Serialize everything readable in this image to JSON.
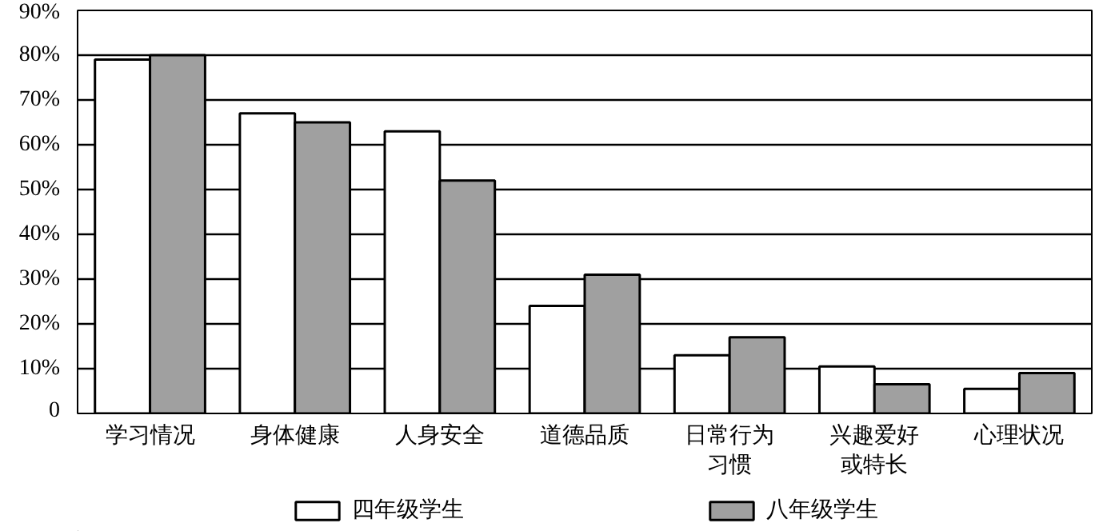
{
  "chart_data": {
    "type": "bar",
    "categories": [
      "学习情况",
      "身体健康",
      "人身安全",
      "道德品质",
      "日常行为习惯",
      "兴趣爱好或特长",
      "心理状况"
    ],
    "series": [
      {
        "name": "四年级学生",
        "color": "#ffffff",
        "values": [
          79,
          67,
          63,
          24,
          13,
          10.5,
          5.5
        ]
      },
      {
        "name": "八年级学生",
        "color": "#a0a0a0",
        "values": [
          80,
          65,
          52,
          31,
          17,
          6.5,
          9
        ]
      }
    ],
    "ylim": [
      0,
      90
    ],
    "yticks": [
      {
        "value": 0,
        "label": "0"
      },
      {
        "value": 10,
        "label": "10%"
      },
      {
        "value": 20,
        "label": "20%"
      },
      {
        "value": 30,
        "label": "30%"
      },
      {
        "value": 40,
        "label": "40%"
      },
      {
        "value": 50,
        "label": "50%"
      },
      {
        "value": 60,
        "label": "60%"
      },
      {
        "value": 70,
        "label": "70%"
      },
      {
        "value": 80,
        "label": "80%"
      },
      {
        "value": 90,
        "label": "90%"
      }
    ],
    "grid": "y",
    "legend": "bottom"
  }
}
